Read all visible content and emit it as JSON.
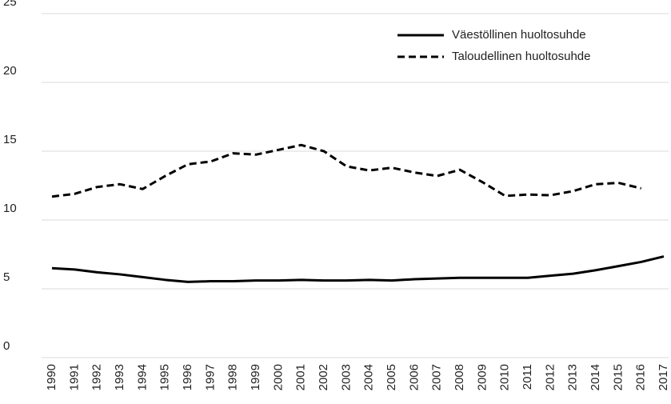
{
  "chart_data": {
    "type": "line",
    "categories": [
      "1990",
      "1991",
      "1992",
      "1993",
      "1994",
      "1995",
      "1996",
      "1997",
      "1998",
      "1999",
      "2000",
      "2001",
      "2002",
      "2003",
      "2004",
      "2005",
      "2006",
      "2007",
      "2008",
      "2009",
      "2010",
      "2011",
      "2012",
      "2013",
      "2014",
      "2015",
      "2016",
      "2017"
    ],
    "series": [
      {
        "name": "Väestöllinen huoltosuhde",
        "color": "#000000",
        "dash": "solid",
        "values": [
          6.5,
          6.4,
          6.2,
          6.05,
          5.85,
          5.65,
          5.5,
          5.55,
          5.55,
          5.6,
          5.6,
          5.65,
          5.6,
          5.6,
          5.65,
          5.6,
          5.7,
          5.75,
          5.8,
          5.8,
          5.8,
          5.8,
          5.95,
          6.1,
          6.35,
          6.65,
          6.95,
          7.35
        ]
      },
      {
        "name": "Taloudellinen huoltosuhde",
        "color": "#000000",
        "dash": "dashed",
        "values": [
          11.7,
          11.9,
          12.4,
          12.6,
          12.25,
          13.2,
          14.05,
          14.25,
          14.85,
          14.75,
          15.1,
          15.45,
          15.0,
          13.9,
          13.6,
          13.8,
          13.45,
          13.2,
          13.65,
          12.75,
          11.75,
          11.85,
          11.8,
          12.1,
          12.6,
          12.7,
          12.3,
          null
        ]
      }
    ],
    "ylim": [
      0,
      25
    ],
    "yticks": [
      0,
      5,
      10,
      15,
      20,
      25
    ],
    "grid": true,
    "legend": "upper right"
  }
}
